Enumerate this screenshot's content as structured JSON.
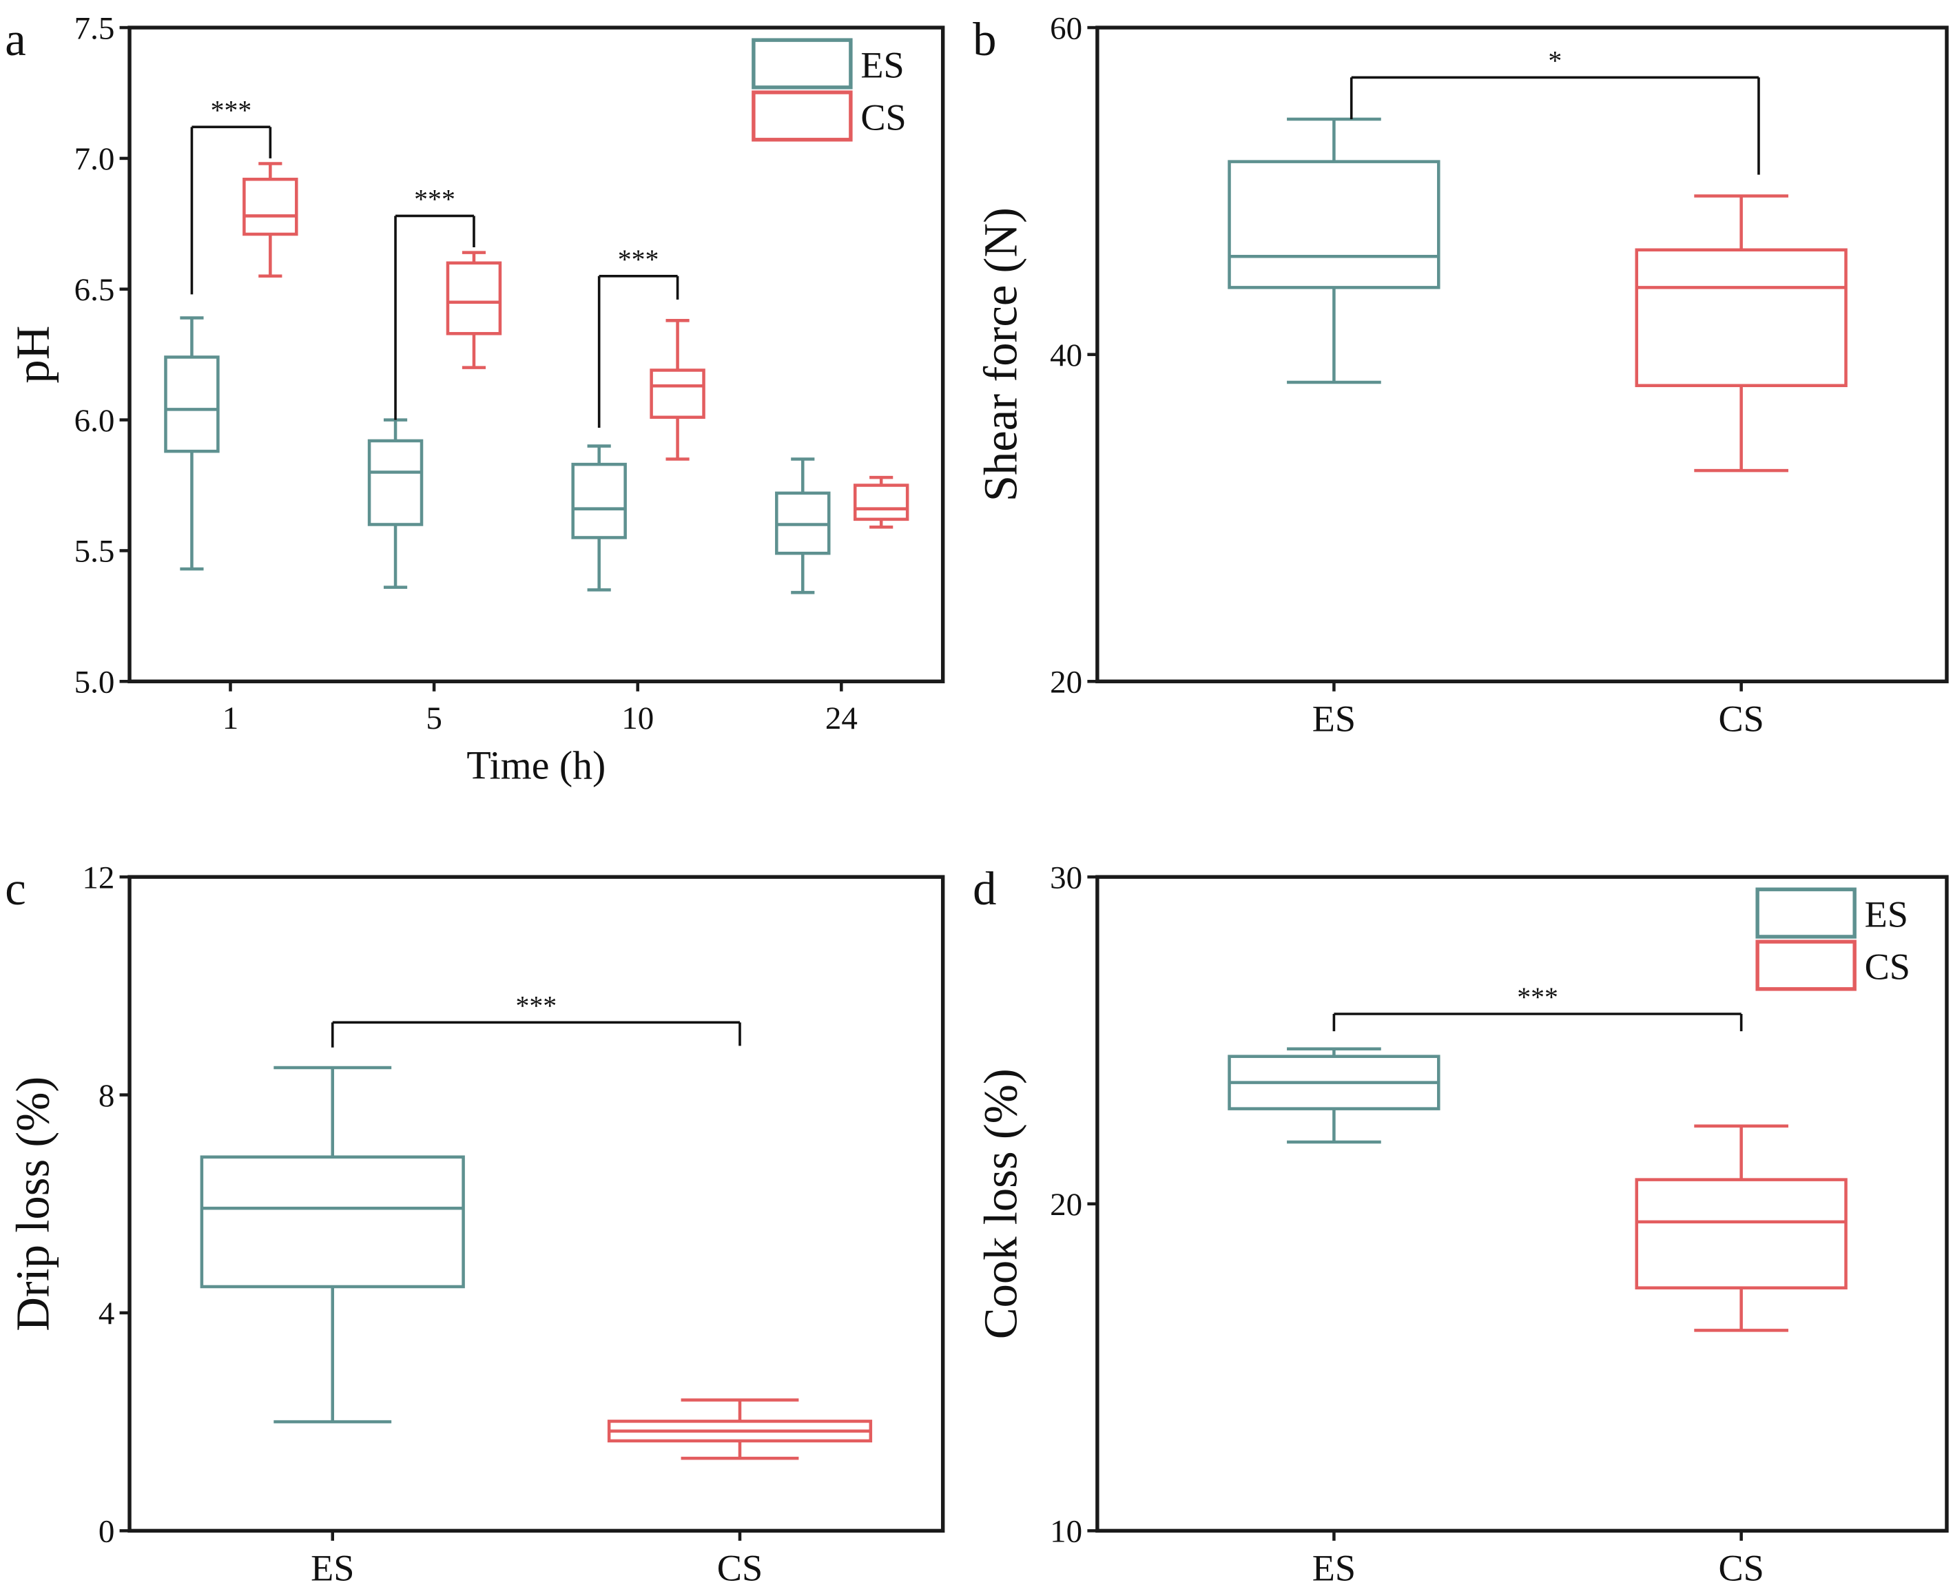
{
  "colors": {
    "ES": "#5e9190",
    "CS": "#e35d5f",
    "axis": "#1a1a1a"
  },
  "chart_data": [
    {
      "type": "box",
      "panel_label": "a",
      "xlabel": "Time (h)",
      "ylabel": "pH",
      "ylim": [
        5.0,
        7.5
      ],
      "yticks": [
        "5.0",
        "5.5",
        "6.0",
        "6.5",
        "7.0",
        "7.5"
      ],
      "categories": [
        "1",
        "5",
        "10",
        "24"
      ],
      "legend": {
        "placement": "top-right",
        "entries": [
          "ES",
          "CS"
        ]
      },
      "series": [
        {
          "name": "ES",
          "boxes": [
            {
              "min": 5.43,
              "q1": 5.88,
              "median": 6.04,
              "q3": 6.24,
              "max": 6.39
            },
            {
              "min": 5.36,
              "q1": 5.6,
              "median": 5.8,
              "q3": 5.92,
              "max": 6.0
            },
            {
              "min": 5.35,
              "q1": 5.55,
              "median": 5.66,
              "q3": 5.83,
              "max": 5.9
            },
            {
              "min": 5.34,
              "q1": 5.49,
              "median": 5.6,
              "q3": 5.72,
              "max": 5.85
            }
          ]
        },
        {
          "name": "CS",
          "boxes": [
            {
              "min": 6.55,
              "q1": 6.71,
              "median": 6.78,
              "q3": 6.92,
              "max": 6.98
            },
            {
              "min": 6.2,
              "q1": 6.33,
              "median": 6.45,
              "q3": 6.6,
              "max": 6.64
            },
            {
              "min": 5.85,
              "q1": 6.01,
              "median": 6.13,
              "q3": 6.19,
              "max": 6.38
            },
            {
              "min": 5.59,
              "q1": 5.62,
              "median": 5.66,
              "q3": 5.75,
              "max": 5.78
            }
          ]
        }
      ],
      "significance": [
        {
          "category": "1",
          "label": "***",
          "y": 7.12,
          "left": 6.48,
          "right": 7.0
        },
        {
          "category": "5",
          "label": "***",
          "y": 6.78,
          "left": 6.0,
          "right": 6.66
        },
        {
          "category": "10",
          "label": "***",
          "y": 6.55,
          "left": 5.97,
          "right": 6.46
        }
      ]
    },
    {
      "type": "box",
      "panel_label": "b",
      "xlabel": "",
      "ylabel": "Shear force (N)",
      "ylim": [
        20,
        60
      ],
      "yticks": [
        "20",
        "40",
        "60"
      ],
      "categories": [
        "ES",
        "CS"
      ],
      "boxes": [
        {
          "name": "ES",
          "min": 38.3,
          "q1": 44.1,
          "median": 46.0,
          "q3": 51.8,
          "max": 54.4
        },
        {
          "name": "CS",
          "min": 32.9,
          "q1": 38.1,
          "median": 44.1,
          "q3": 46.4,
          "max": 49.7
        }
      ],
      "significance": [
        {
          "label": "*",
          "y": 56.95,
          "left": 54.4,
          "right": 51.0
        }
      ]
    },
    {
      "type": "box",
      "panel_label": "c",
      "xlabel": "",
      "ylabel": "Drip loss (%)",
      "ylim": [
        0,
        12
      ],
      "yticks": [
        "0",
        "4",
        "8",
        "12"
      ],
      "categories": [
        "ES",
        "CS"
      ],
      "boxes": [
        {
          "name": "ES",
          "min": 2.0,
          "q1": 4.48,
          "median": 5.92,
          "q3": 6.86,
          "max": 8.5
        },
        {
          "name": "CS",
          "min": 1.33,
          "q1": 1.65,
          "median": 1.83,
          "q3": 2.01,
          "max": 2.4
        }
      ],
      "significance": [
        {
          "label": "***",
          "y": 9.33,
          "left": 8.87,
          "right": 8.9
        }
      ]
    },
    {
      "type": "box",
      "panel_label": "d",
      "xlabel": "",
      "ylabel": "Cook loss (%)",
      "ylim": [
        10,
        30
      ],
      "yticks": [
        "10",
        "20",
        "30"
      ],
      "categories": [
        "ES",
        "CS"
      ],
      "legend": {
        "placement": "top-right",
        "entries": [
          "ES",
          "CS"
        ]
      },
      "boxes": [
        {
          "name": "ES",
          "min": 21.89,
          "q1": 22.91,
          "median": 23.71,
          "q3": 24.51,
          "max": 24.74
        },
        {
          "name": "CS",
          "min": 16.13,
          "q1": 17.43,
          "median": 19.45,
          "q3": 20.74,
          "max": 22.38
        }
      ],
      "significance": [
        {
          "label": "***",
          "y": 25.81,
          "left": 25.28,
          "right": 25.28
        }
      ]
    }
  ]
}
